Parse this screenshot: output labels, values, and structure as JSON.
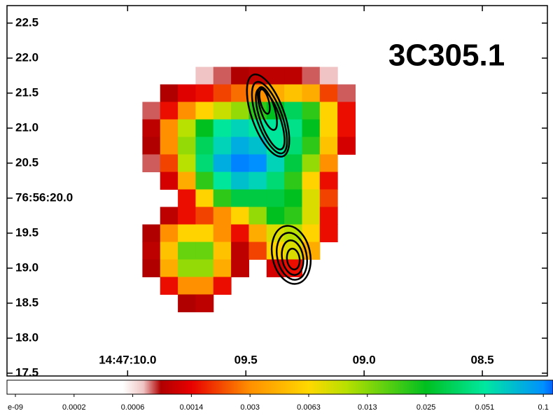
{
  "chart_data": {
    "type": "heatmap",
    "title": "3C305.1",
    "x": [
      9.9,
      9.825,
      9.75,
      9.675,
      9.6,
      9.525,
      9.45,
      9.375,
      9.3,
      9.225,
      9.15,
      9.075
    ],
    "y": [
      21.75,
      21.5,
      21.25,
      21.0,
      20.75,
      20.5,
      20.25,
      20.0,
      19.75,
      19.5,
      19.25,
      19.0,
      18.75,
      18.5
    ],
    "values": [
      [
        null,
        null,
        null,
        0.0007,
        0.0008,
        0.0009,
        0.001,
        0.001,
        0.001,
        0.0008,
        0.0007,
        null
      ],
      [
        null,
        0.0009,
        0.0013,
        0.0015,
        0.002,
        0.0025,
        0.003,
        0.004,
        0.005,
        0.004,
        0.002,
        0.0008
      ],
      [
        0.0008,
        0.0015,
        0.003,
        0.006,
        0.009,
        0.012,
        0.02,
        0.025,
        0.035,
        0.02,
        0.006,
        0.0015
      ],
      [
        0.001,
        0.003,
        0.01,
        0.025,
        0.05,
        0.06,
        0.05,
        0.05,
        0.045,
        0.025,
        0.006,
        0.0015
      ],
      [
        0.0009,
        0.003,
        0.012,
        0.035,
        0.06,
        0.08,
        0.07,
        0.05,
        0.04,
        0.02,
        0.005,
        0.0012
      ],
      [
        0.0008,
        0.002,
        0.01,
        0.04,
        0.08,
        0.12,
        0.1,
        0.06,
        0.03,
        0.012,
        0.003,
        null
      ],
      [
        null,
        0.0012,
        0.004,
        0.02,
        0.05,
        0.07,
        0.06,
        0.04,
        0.02,
        0.006,
        0.0015,
        null
      ],
      [
        null,
        null,
        0.0015,
        0.006,
        0.02,
        0.03,
        0.03,
        0.03,
        0.025,
        0.008,
        0.002,
        null
      ],
      [
        null,
        0.001,
        0.0015,
        0.002,
        0.003,
        0.006,
        0.012,
        0.025,
        0.02,
        0.008,
        0.0015,
        null
      ],
      [
        0.0009,
        0.003,
        0.006,
        0.006,
        0.003,
        0.0015,
        0.004,
        0.008,
        0.01,
        0.006,
        0.0015,
        null
      ],
      [
        0.001,
        0.005,
        0.015,
        0.015,
        0.005,
        0.001,
        0.002,
        0.006,
        0.008,
        0.004,
        null,
        null
      ],
      [
        0.0009,
        0.004,
        0.012,
        0.012,
        0.004,
        0.001,
        null,
        0.0012,
        0.0015,
        null,
        null,
        null
      ],
      [
        null,
        0.0015,
        0.003,
        0.003,
        0.0015,
        null,
        null,
        null,
        null,
        null,
        null,
        null
      ],
      [
        null,
        null,
        0.0009,
        0.001,
        null,
        null,
        null,
        null,
        null,
        null,
        null,
        null
      ]
    ],
    "xlim": [
      10.51,
      8.225
    ],
    "ylim": [
      17.46,
      22.75
    ],
    "xticks": [
      {
        "value": 10,
        "label": "14:47:10.0"
      },
      {
        "value": 9.5,
        "label": "09.5"
      },
      {
        "value": 9,
        "label": "09.0"
      },
      {
        "value": 8.5,
        "label": "08.5"
      }
    ],
    "yticks": [
      22.5,
      {
        "value": 22,
        "label": "22.0"
      },
      21.5,
      {
        "value": 21,
        "label": "21.0"
      },
      20.5,
      {
        "value": 20,
        "label": "76:56:20.0"
      },
      19.5,
      {
        "value": 19,
        "label": "19.0"
      },
      18.5,
      {
        "value": 18,
        "label": "18.0"
      },
      17.5
    ],
    "colorbar_ticks": [
      {
        "value": 1e-09,
        "label": "e-09"
      },
      0.0002,
      0.0006,
      0.0014,
      0.003,
      0.0063,
      0.013,
      0.025,
      0.051,
      0.1
    ],
    "colormap": [
      {
        "value": 0.0005,
        "color": "#ffffff"
      },
      {
        "value": 0.0007,
        "color": "#f0c4c4"
      },
      {
        "value": 0.0009,
        "color": "#b00000"
      },
      {
        "value": 0.0014,
        "color": "#e80000"
      },
      {
        "value": 0.003,
        "color": "#ff9000"
      },
      {
        "value": 0.0063,
        "color": "#ffd800"
      },
      {
        "value": 0.01,
        "color": "#b8e000"
      },
      {
        "value": 0.025,
        "color": "#00c020"
      },
      {
        "value": 0.051,
        "color": "#00e8a0"
      },
      {
        "value": 0.1,
        "color": "#0090ff"
      },
      {
        "value": 0.2,
        "color": "#0060ff"
      }
    ]
  }
}
